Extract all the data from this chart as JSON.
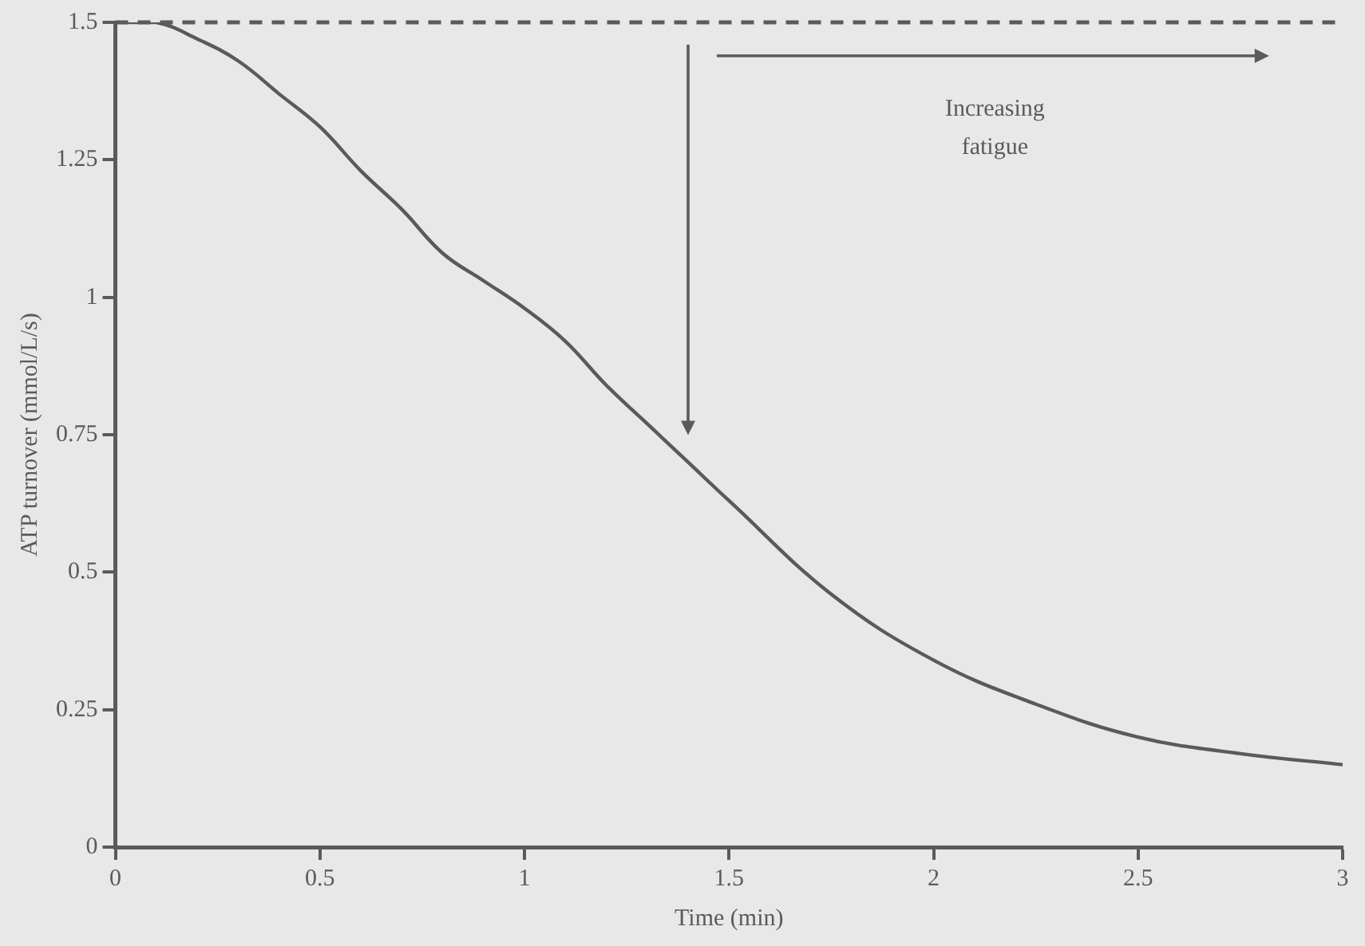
{
  "chart_data": {
    "type": "line",
    "xlabel": "Time (min)",
    "ylabel": "ATP turnover (mmol/L/s)",
    "x": [
      0,
      0.1,
      0.2,
      0.3,
      0.4,
      0.5,
      0.6,
      0.7,
      0.8,
      0.9,
      1,
      1.1,
      1.2,
      1.3,
      1.4,
      1.5,
      1.75,
      2,
      2.25,
      2.5,
      2.75,
      3
    ],
    "series": [
      {
        "color": "#5a5a5a",
        "values": [
          1.5,
          1.5,
          1.47,
          1.43,
          1.37,
          1.31,
          1.23,
          1.16,
          1.08,
          1.03,
          0.98,
          0.92,
          0.84,
          0.77,
          0.7,
          0.63,
          0.46,
          0.34,
          0.26,
          0.2,
          0.17,
          0.15
        ]
      }
    ],
    "xlim": [
      0,
      3
    ],
    "xticks": [
      0,
      0.5,
      1,
      1.5,
      2,
      2.5,
      3
    ],
    "ylim": [
      0,
      1.5
    ],
    "yticks": [
      0,
      0.25,
      0.5,
      0.75,
      1,
      1.25,
      1.5
    ],
    "ref_lines": [
      {
        "axis": "y",
        "value": 1.5,
        "color": "#5a5a5a",
        "line_style": "dashed"
      }
    ],
    "annotations": [
      "Increasing fatigue"
    ],
    "grid": false,
    "legend": false,
    "marker": "none",
    "line_style": "solid"
  }
}
